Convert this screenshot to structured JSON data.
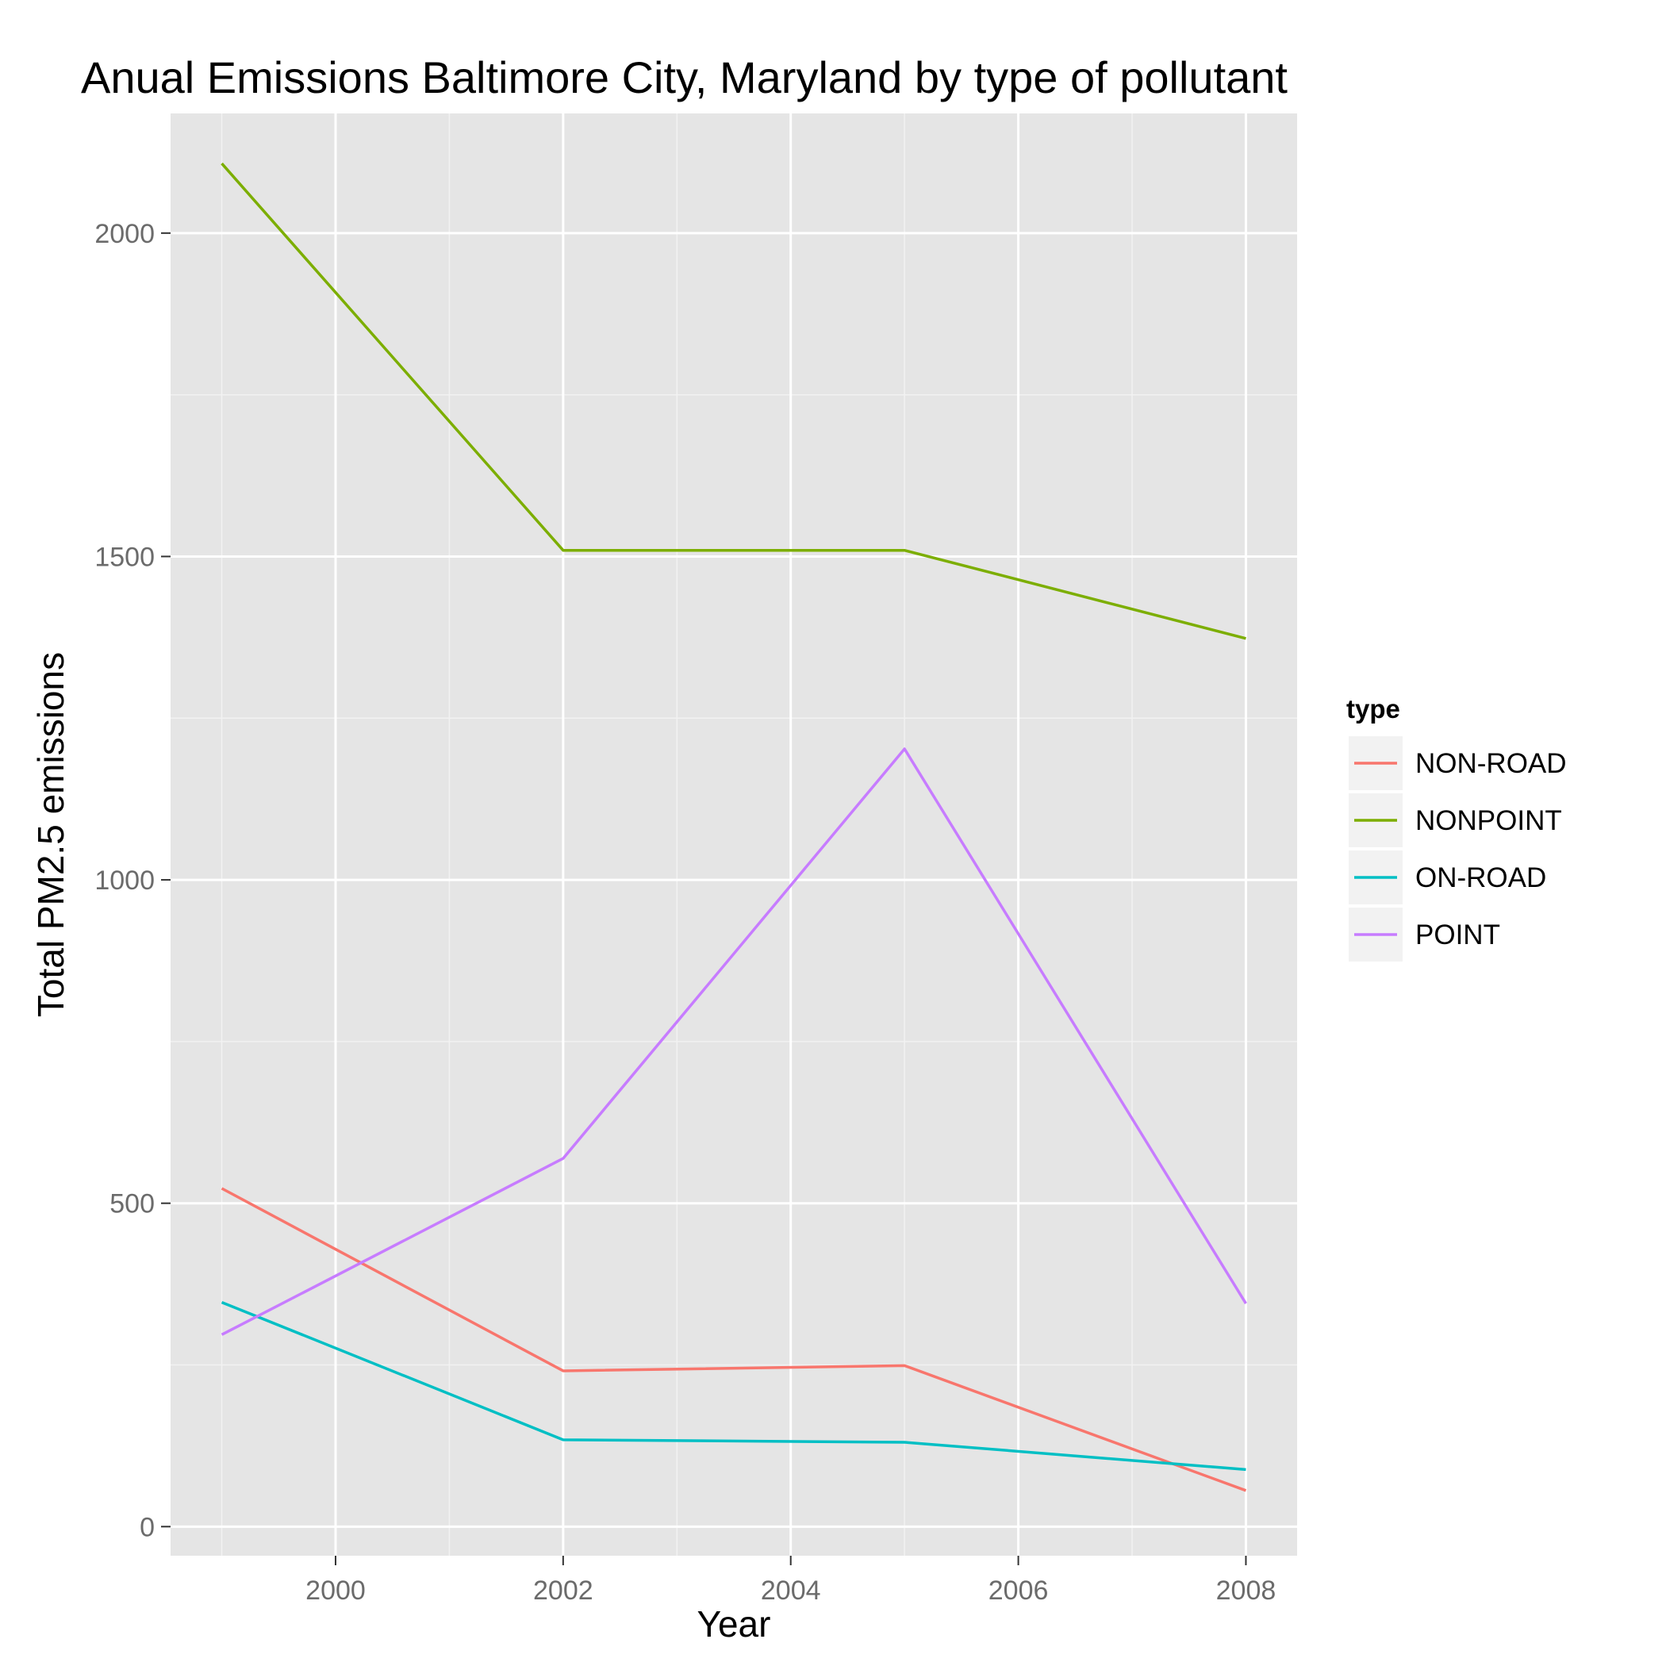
{
  "chart_data": {
    "type": "line",
    "title": "Anual Emissions Baltimore City, Maryland by type of pollutant",
    "xlabel": "Year",
    "ylabel": "Total PM2.5 emissions",
    "x": [
      1999,
      2002,
      2005,
      2008
    ],
    "x_ticks": [
      "2000",
      "2002",
      "2004",
      "2006",
      "2008"
    ],
    "y_ticks": [
      "0",
      "500",
      "1000",
      "1500",
      "2000"
    ],
    "xlim": [
      1998.55,
      2008.45
    ],
    "ylim": [
      -45,
      2185
    ],
    "grid": true,
    "legend": {
      "title": "type",
      "position": "right"
    },
    "series": [
      {
        "name": "NON-ROAD",
        "color": "#F8766D",
        "values": [
          522.94,
          240.85,
          248.93,
          55.82
        ]
      },
      {
        "name": "NONPOINT",
        "color": "#7CAE00",
        "values": [
          2107.63,
          1509.5,
          1509.5,
          1373.21
        ]
      },
      {
        "name": "ON-ROAD",
        "color": "#00BFC4",
        "values": [
          346.82,
          134.31,
          130.43,
          88.28
        ]
      },
      {
        "name": "POINT",
        "color": "#C77CFF",
        "values": [
          296.8,
          569.26,
          1202.49,
          344.98
        ]
      }
    ]
  }
}
